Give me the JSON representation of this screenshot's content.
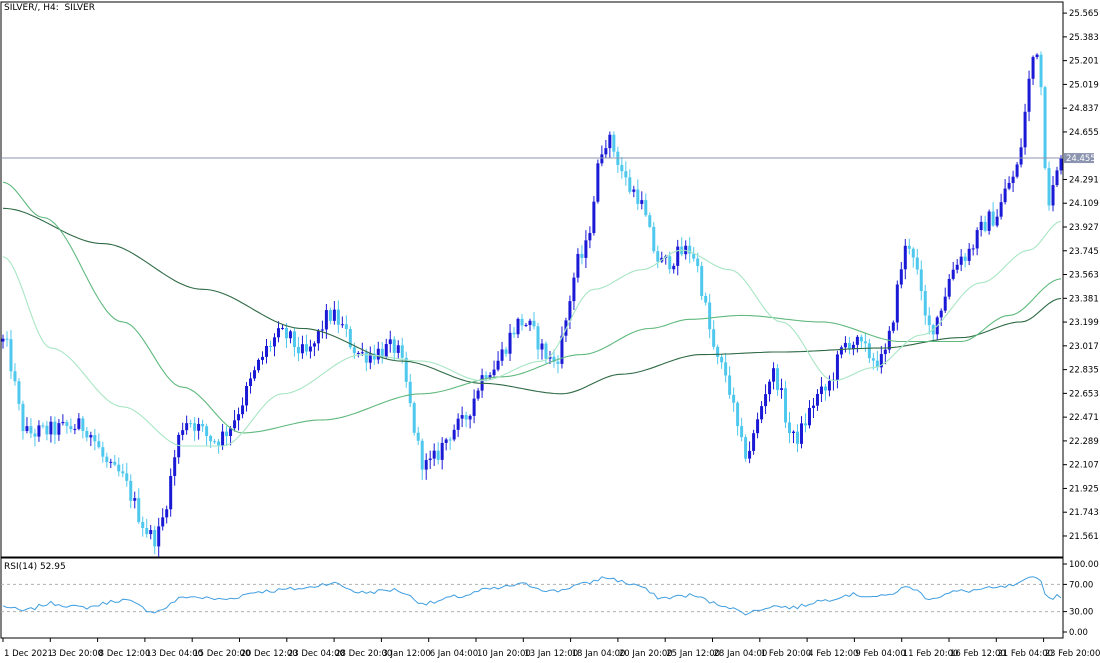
{
  "window": {
    "title": "SILVER/, H4:  SILVER",
    "indicator_label": "RSI(14) 52.95"
  },
  "colors": {
    "bull": "#1a1ad6",
    "bear": "#4fc8ee",
    "ma_fast": "#a8e6c4",
    "ma_mid": "#5fb97e",
    "ma_slow": "#2f6a46",
    "rsi": "#3f9ee0",
    "price_line": "#8c95b0",
    "frame": "#000000",
    "grid_dash": "#b0b0b0"
  },
  "price_axis": {
    "labels": [
      "25.565",
      "25.383",
      "25.201",
      "25.019",
      "24.837",
      "24.655",
      "24.291",
      "24.109",
      "23.927",
      "23.745",
      "23.563",
      "23.381",
      "23.199",
      "23.017",
      "22.835",
      "22.653",
      "22.471",
      "22.289",
      "22.107",
      "21.925",
      "21.743",
      "21.561"
    ],
    "current_price": "24.455"
  },
  "time_axis": {
    "labels": [
      "1 Dec 2021",
      "3 Dec 20:00",
      "8 Dec 12:00",
      "13 Dec 04:00",
      "15 Dec 20:00",
      "20 Dec 12:00",
      "23 Dec 04:00",
      "28 Dec 20:00",
      "3 Jan 12:00",
      "6 Jan 04:00",
      "10 Jan 20:00",
      "13 Jan 12:00",
      "18 Jan 04:00",
      "20 Jan 20:00",
      "25 Jan 12:00",
      "28 Jan 04:00",
      "1 Feb 20:00",
      "4 Feb 12:00",
      "9 Feb 04:00",
      "11 Feb 20:00",
      "16 Feb 12:00",
      "21 Feb 04:00",
      "23 Feb 20:00"
    ]
  },
  "rsi_axis": {
    "labels": [
      "100.00",
      "70.00",
      "30.00",
      "0.00"
    ],
    "levels": [
      70,
      30
    ]
  },
  "chart_data": {
    "type": "candlestick",
    "symbol": "SILVER",
    "timeframe": "H4",
    "ylim": [
      21.4,
      25.65
    ],
    "key_points": [
      {
        "bar": 0,
        "close": 23.05
      },
      {
        "bar": 6,
        "close": 22.35
      },
      {
        "bar": 20,
        "close": 22.4
      },
      {
        "bar": 28,
        "close": 22.05
      },
      {
        "bar": 38,
        "close": 21.55
      },
      {
        "bar": 46,
        "close": 22.45
      },
      {
        "bar": 53,
        "close": 22.3
      },
      {
        "bar": 70,
        "close": 23.1
      },
      {
        "bar": 76,
        "close": 22.95
      },
      {
        "bar": 82,
        "close": 23.25
      },
      {
        "bar": 90,
        "close": 22.95
      },
      {
        "bar": 98,
        "close": 23.0
      },
      {
        "bar": 106,
        "close": 22.1
      },
      {
        "bar": 114,
        "close": 22.4
      },
      {
        "bar": 122,
        "close": 22.85
      },
      {
        "bar": 130,
        "close": 23.2
      },
      {
        "bar": 138,
        "close": 22.9
      },
      {
        "bar": 145,
        "close": 23.7
      },
      {
        "bar": 151,
        "close": 24.6
      },
      {
        "bar": 158,
        "close": 24.2
      },
      {
        "bar": 165,
        "close": 23.65
      },
      {
        "bar": 172,
        "close": 23.75
      },
      {
        "bar": 180,
        "close": 22.85
      },
      {
        "bar": 186,
        "close": 22.2
      },
      {
        "bar": 193,
        "close": 22.8
      },
      {
        "bar": 198,
        "close": 22.3
      },
      {
        "bar": 205,
        "close": 22.65
      },
      {
        "bar": 212,
        "close": 23.05
      },
      {
        "bar": 220,
        "close": 22.9
      },
      {
        "bar": 227,
        "close": 23.8
      },
      {
        "bar": 232,
        "close": 23.15
      },
      {
        "bar": 240,
        "close": 23.7
      },
      {
        "bar": 248,
        "close": 24.0
      },
      {
        "bar": 253,
        "close": 24.3
      },
      {
        "bar": 259,
        "close": 25.3
      },
      {
        "bar": 262,
        "close": 24.15
      },
      {
        "bar": 265,
        "close": 24.4
      }
    ],
    "sma_fast_key": [
      {
        "bar": 0,
        "y": 23.7
      },
      {
        "bar": 12,
        "y": 23.0
      },
      {
        "bar": 30,
        "y": 22.55
      },
      {
        "bar": 45,
        "y": 22.25
      },
      {
        "bar": 55,
        "y": 22.25
      },
      {
        "bar": 70,
        "y": 22.65
      },
      {
        "bar": 90,
        "y": 22.95
      },
      {
        "bar": 105,
        "y": 22.9
      },
      {
        "bar": 120,
        "y": 22.75
      },
      {
        "bar": 135,
        "y": 22.9
      },
      {
        "bar": 148,
        "y": 23.45
      },
      {
        "bar": 160,
        "y": 23.6
      },
      {
        "bar": 170,
        "y": 23.75
      },
      {
        "bar": 182,
        "y": 23.6
      },
      {
        "bar": 195,
        "y": 23.2
      },
      {
        "bar": 208,
        "y": 22.75
      },
      {
        "bar": 218,
        "y": 22.85
      },
      {
        "bar": 230,
        "y": 23.1
      },
      {
        "bar": 245,
        "y": 23.5
      },
      {
        "bar": 257,
        "y": 23.75
      },
      {
        "bar": 265,
        "y": 23.97
      }
    ],
    "sma_mid_key": [
      {
        "bar": 0,
        "y": 24.27
      },
      {
        "bar": 10,
        "y": 24.0
      },
      {
        "bar": 30,
        "y": 23.2
      },
      {
        "bar": 45,
        "y": 22.7
      },
      {
        "bar": 60,
        "y": 22.35
      },
      {
        "bar": 80,
        "y": 22.45
      },
      {
        "bar": 105,
        "y": 22.65
      },
      {
        "bar": 125,
        "y": 22.78
      },
      {
        "bar": 145,
        "y": 22.95
      },
      {
        "bar": 162,
        "y": 23.15
      },
      {
        "bar": 172,
        "y": 23.22
      },
      {
        "bar": 185,
        "y": 23.25
      },
      {
        "bar": 205,
        "y": 23.2
      },
      {
        "bar": 225,
        "y": 23.05
      },
      {
        "bar": 240,
        "y": 23.05
      },
      {
        "bar": 252,
        "y": 23.25
      },
      {
        "bar": 265,
        "y": 23.53
      }
    ],
    "sma_slow_key": [
      {
        "bar": 0,
        "y": 24.07
      },
      {
        "bar": 25,
        "y": 23.8
      },
      {
        "bar": 50,
        "y": 23.45
      },
      {
        "bar": 75,
        "y": 23.15
      },
      {
        "bar": 100,
        "y": 22.9
      },
      {
        "bar": 120,
        "y": 22.73
      },
      {
        "bar": 140,
        "y": 22.65
      },
      {
        "bar": 155,
        "y": 22.8
      },
      {
        "bar": 175,
        "y": 22.95
      },
      {
        "bar": 195,
        "y": 22.97
      },
      {
        "bar": 220,
        "y": 23.0
      },
      {
        "bar": 240,
        "y": 23.08
      },
      {
        "bar": 255,
        "y": 23.2
      },
      {
        "bar": 265,
        "y": 23.38
      }
    ],
    "rsi_key": [
      {
        "bar": 0,
        "v": 38
      },
      {
        "bar": 5,
        "v": 31
      },
      {
        "bar": 12,
        "v": 42
      },
      {
        "bar": 20,
        "v": 36
      },
      {
        "bar": 30,
        "v": 47
      },
      {
        "bar": 38,
        "v": 30
      },
      {
        "bar": 46,
        "v": 52
      },
      {
        "bar": 55,
        "v": 48
      },
      {
        "bar": 65,
        "v": 60
      },
      {
        "bar": 75,
        "v": 64
      },
      {
        "bar": 82,
        "v": 72
      },
      {
        "bar": 90,
        "v": 58
      },
      {
        "bar": 98,
        "v": 62
      },
      {
        "bar": 106,
        "v": 42
      },
      {
        "bar": 114,
        "v": 52
      },
      {
        "bar": 122,
        "v": 63
      },
      {
        "bar": 130,
        "v": 70
      },
      {
        "bar": 138,
        "v": 60
      },
      {
        "bar": 145,
        "v": 70
      },
      {
        "bar": 151,
        "v": 80
      },
      {
        "bar": 158,
        "v": 70
      },
      {
        "bar": 165,
        "v": 50
      },
      {
        "bar": 172,
        "v": 54
      },
      {
        "bar": 180,
        "v": 40
      },
      {
        "bar": 186,
        "v": 28
      },
      {
        "bar": 193,
        "v": 38
      },
      {
        "bar": 198,
        "v": 36
      },
      {
        "bar": 205,
        "v": 46
      },
      {
        "bar": 212,
        "v": 55
      },
      {
        "bar": 220,
        "v": 52
      },
      {
        "bar": 227,
        "v": 66
      },
      {
        "bar": 232,
        "v": 50
      },
      {
        "bar": 240,
        "v": 60
      },
      {
        "bar": 248,
        "v": 64
      },
      {
        "bar": 253,
        "v": 68
      },
      {
        "bar": 259,
        "v": 82
      },
      {
        "bar": 262,
        "v": 50
      },
      {
        "bar": 265,
        "v": 53
      }
    ]
  }
}
